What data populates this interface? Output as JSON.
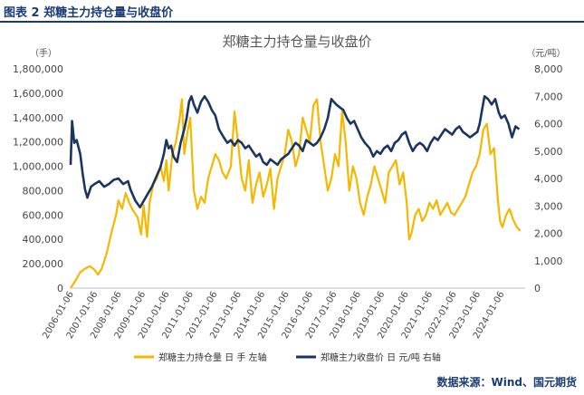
{
  "figure": {
    "caption": "图表 2  郑糖主力持仓量与收盘价",
    "source": "数据来源：Wind、国元期货"
  },
  "chart_data": {
    "type": "line",
    "title": "郑糖主力持仓量与收盘价",
    "left_axis": {
      "unit_label": "（手）",
      "ylim": [
        0,
        1800000
      ],
      "ticks": [
        "0",
        "200,000",
        "400,000",
        "600,000",
        "800,000",
        "1,000,000",
        "1,200,000",
        "1,400,000",
        "1,600,000",
        "1,800,000"
      ]
    },
    "right_axis": {
      "unit_label": "（元/吨）",
      "ylim": [
        0,
        8000
      ],
      "ticks": [
        "0",
        "1,000",
        "2,000",
        "3,000",
        "4,000",
        "5,000",
        "6,000",
        "7,000",
        "8,000"
      ]
    },
    "x_ticks": [
      "2006-01-06",
      "2007-01-06",
      "2008-01-06",
      "2009-01-06",
      "2010-01-06",
      "2011-01-06",
      "2012-01-06",
      "2013-01-06",
      "2014-01-06",
      "2015-01-06",
      "2016-01-06",
      "2017-01-06",
      "2018-01-06",
      "2019-01-06",
      "2020-01-06",
      "2021-01-06",
      "2022-01-06",
      "2023-01-06",
      "2024-01-06"
    ],
    "x_range": [
      2006.0,
      2025.0
    ],
    "colors": {
      "open_interest": "#f5b800",
      "close_price": "#1b3560"
    },
    "series": [
      {
        "name": "郑糖主力持仓量 日 手 左轴",
        "axis": "left",
        "color": "#f5b800",
        "points": [
          [
            2006.0,
            0
          ],
          [
            2006.2,
            60000
          ],
          [
            2006.4,
            130000
          ],
          [
            2006.6,
            160000
          ],
          [
            2006.8,
            180000
          ],
          [
            2007.0,
            150000
          ],
          [
            2007.15,
            110000
          ],
          [
            2007.3,
            160000
          ],
          [
            2007.5,
            280000
          ],
          [
            2007.7,
            450000
          ],
          [
            2007.9,
            600000
          ],
          [
            2008.0,
            720000
          ],
          [
            2008.15,
            650000
          ],
          [
            2008.3,
            780000
          ],
          [
            2008.45,
            700000
          ],
          [
            2008.6,
            640000
          ],
          [
            2008.8,
            580000
          ],
          [
            2008.95,
            440000
          ],
          [
            2009.05,
            680000
          ],
          [
            2009.2,
            420000
          ],
          [
            2009.3,
            700000
          ],
          [
            2009.45,
            850000
          ],
          [
            2009.6,
            900000
          ],
          [
            2009.75,
            1000000
          ],
          [
            2009.9,
            880000
          ],
          [
            2010.0,
            1050000
          ],
          [
            2010.1,
            800000
          ],
          [
            2010.25,
            1100000
          ],
          [
            2010.4,
            1200000
          ],
          [
            2010.55,
            1380000
          ],
          [
            2010.65,
            1550000
          ],
          [
            2010.75,
            1100000
          ],
          [
            2010.9,
            1300000
          ],
          [
            2011.0,
            1400000
          ],
          [
            2011.15,
            800000
          ],
          [
            2011.3,
            650000
          ],
          [
            2011.45,
            750000
          ],
          [
            2011.6,
            700000
          ],
          [
            2011.75,
            900000
          ],
          [
            2011.9,
            1000000
          ],
          [
            2012.05,
            1100000
          ],
          [
            2012.2,
            1050000
          ],
          [
            2012.35,
            950000
          ],
          [
            2012.5,
            900000
          ],
          [
            2012.7,
            1000000
          ],
          [
            2012.85,
            1450000
          ],
          [
            2013.0,
            1200000
          ],
          [
            2013.15,
            900000
          ],
          [
            2013.3,
            800000
          ],
          [
            2013.45,
            1050000
          ],
          [
            2013.6,
            700000
          ],
          [
            2013.75,
            850000
          ],
          [
            2013.9,
            950000
          ],
          [
            2014.05,
            750000
          ],
          [
            2014.2,
            850000
          ],
          [
            2014.35,
            980000
          ],
          [
            2014.5,
            650000
          ],
          [
            2014.65,
            900000
          ],
          [
            2014.8,
            1000000
          ],
          [
            2014.95,
            1100000
          ],
          [
            2015.1,
            1300000
          ],
          [
            2015.25,
            1200000
          ],
          [
            2015.4,
            1000000
          ],
          [
            2015.55,
            1100000
          ],
          [
            2015.7,
            1400000
          ],
          [
            2015.85,
            1300000
          ],
          [
            2016.0,
            1200000
          ],
          [
            2016.15,
            1500000
          ],
          [
            2016.3,
            1550000
          ],
          [
            2016.45,
            1200000
          ],
          [
            2016.6,
            1000000
          ],
          [
            2016.75,
            800000
          ],
          [
            2016.9,
            900000
          ],
          [
            2017.05,
            1100000
          ],
          [
            2017.2,
            1000000
          ],
          [
            2017.35,
            1450000
          ],
          [
            2017.5,
            1200000
          ],
          [
            2017.65,
            800000
          ],
          [
            2017.8,
            1000000
          ],
          [
            2017.95,
            900000
          ],
          [
            2018.1,
            700000
          ],
          [
            2018.25,
            600000
          ],
          [
            2018.4,
            750000
          ],
          [
            2018.55,
            850000
          ],
          [
            2018.7,
            1000000
          ],
          [
            2018.85,
            900000
          ],
          [
            2019.0,
            800000
          ],
          [
            2019.15,
            700000
          ],
          [
            2019.3,
            950000
          ],
          [
            2019.45,
            1000000
          ],
          [
            2019.6,
            1050000
          ],
          [
            2019.75,
            850000
          ],
          [
            2019.9,
            950000
          ],
          [
            2020.05,
            700000
          ],
          [
            2020.15,
            400000
          ],
          [
            2020.25,
            450000
          ],
          [
            2020.4,
            600000
          ],
          [
            2020.55,
            650000
          ],
          [
            2020.7,
            550000
          ],
          [
            2020.85,
            600000
          ],
          [
            2021.0,
            700000
          ],
          [
            2021.15,
            650000
          ],
          [
            2021.3,
            720000
          ],
          [
            2021.45,
            600000
          ],
          [
            2021.6,
            650000
          ],
          [
            2021.75,
            700000
          ],
          [
            2021.9,
            620000
          ],
          [
            2022.05,
            600000
          ],
          [
            2022.2,
            650000
          ],
          [
            2022.35,
            700000
          ],
          [
            2022.5,
            750000
          ],
          [
            2022.65,
            850000
          ],
          [
            2022.8,
            950000
          ],
          [
            2022.95,
            1000000
          ],
          [
            2023.1,
            1100000
          ],
          [
            2023.25,
            1300000
          ],
          [
            2023.4,
            1350000
          ],
          [
            2023.55,
            1100000
          ],
          [
            2023.7,
            1150000
          ],
          [
            2023.85,
            750000
          ],
          [
            2023.95,
            550000
          ],
          [
            2024.05,
            500000
          ],
          [
            2024.2,
            600000
          ],
          [
            2024.35,
            650000
          ],
          [
            2024.5,
            560000
          ],
          [
            2024.65,
            500000
          ],
          [
            2024.8,
            470000
          ]
        ]
      },
      {
        "name": "郑糖主力收盘价 日 元/吨 右轴",
        "axis": "right",
        "color": "#1b3560",
        "points": [
          [
            2006.0,
            4500
          ],
          [
            2006.06,
            6100
          ],
          [
            2006.15,
            5300
          ],
          [
            2006.25,
            5400
          ],
          [
            2006.4,
            4900
          ],
          [
            2006.5,
            4200
          ],
          [
            2006.6,
            3600
          ],
          [
            2006.7,
            3300
          ],
          [
            2006.85,
            3700
          ],
          [
            2007.0,
            3800
          ],
          [
            2007.2,
            3900
          ],
          [
            2007.4,
            3700
          ],
          [
            2007.6,
            3800
          ],
          [
            2007.8,
            3950
          ],
          [
            2008.0,
            4000
          ],
          [
            2008.2,
            3800
          ],
          [
            2008.4,
            3900
          ],
          [
            2008.5,
            3600
          ],
          [
            2008.7,
            3200
          ],
          [
            2008.9,
            2950
          ],
          [
            2009.0,
            3100
          ],
          [
            2009.2,
            3400
          ],
          [
            2009.4,
            3700
          ],
          [
            2009.6,
            4100
          ],
          [
            2009.75,
            4400
          ],
          [
            2009.9,
            4900
          ],
          [
            2010.0,
            5400
          ],
          [
            2010.1,
            5100
          ],
          [
            2010.2,
            5200
          ],
          [
            2010.3,
            4800
          ],
          [
            2010.45,
            4600
          ],
          [
            2010.6,
            5300
          ],
          [
            2010.75,
            5800
          ],
          [
            2010.85,
            6200
          ],
          [
            2010.95,
            6800
          ],
          [
            2011.05,
            7000
          ],
          [
            2011.15,
            6700
          ],
          [
            2011.3,
            6400
          ],
          [
            2011.45,
            6800
          ],
          [
            2011.6,
            7000
          ],
          [
            2011.75,
            6800
          ],
          [
            2011.9,
            6500
          ],
          [
            2012.05,
            6300
          ],
          [
            2012.2,
            5800
          ],
          [
            2012.4,
            5500
          ],
          [
            2012.55,
            5300
          ],
          [
            2012.7,
            5400
          ],
          [
            2012.85,
            5200
          ],
          [
            2013.0,
            5400
          ],
          [
            2013.15,
            5300
          ],
          [
            2013.3,
            5100
          ],
          [
            2013.45,
            5200
          ],
          [
            2013.6,
            5000
          ],
          [
            2013.75,
            4800
          ],
          [
            2013.9,
            4900
          ],
          [
            2014.05,
            4600
          ],
          [
            2014.2,
            4500
          ],
          [
            2014.35,
            4700
          ],
          [
            2014.5,
            4600
          ],
          [
            2014.65,
            4500
          ],
          [
            2014.8,
            4700
          ],
          [
            2014.95,
            4800
          ],
          [
            2015.1,
            4900
          ],
          [
            2015.25,
            5100
          ],
          [
            2015.4,
            5300
          ],
          [
            2015.55,
            5200
          ],
          [
            2015.7,
            5000
          ],
          [
            2015.85,
            5400
          ],
          [
            2016.0,
            5300
          ],
          [
            2016.15,
            5200
          ],
          [
            2016.3,
            5300
          ],
          [
            2016.45,
            5500
          ],
          [
            2016.6,
            5800
          ],
          [
            2016.75,
            6200
          ],
          [
            2016.9,
            6900
          ],
          [
            2017.0,
            6800
          ],
          [
            2017.1,
            6700
          ],
          [
            2017.25,
            6600
          ],
          [
            2017.4,
            6500
          ],
          [
            2017.55,
            6200
          ],
          [
            2017.7,
            6000
          ],
          [
            2017.85,
            6100
          ],
          [
            2018.0,
            5800
          ],
          [
            2018.15,
            5500
          ],
          [
            2018.3,
            5300
          ],
          [
            2018.5,
            5100
          ],
          [
            2018.65,
            4800
          ],
          [
            2018.8,
            5000
          ],
          [
            2018.95,
            4900
          ],
          [
            2019.1,
            5100
          ],
          [
            2019.25,
            5200
          ],
          [
            2019.4,
            5000
          ],
          [
            2019.55,
            5300
          ],
          [
            2019.7,
            5400
          ],
          [
            2019.85,
            5600
          ],
          [
            2020.0,
            5700
          ],
          [
            2020.15,
            5300
          ],
          [
            2020.3,
            5000
          ],
          [
            2020.45,
            5200
          ],
          [
            2020.6,
            5300
          ],
          [
            2020.75,
            5200
          ],
          [
            2020.9,
            5000
          ],
          [
            2021.05,
            5300
          ],
          [
            2021.2,
            5500
          ],
          [
            2021.35,
            5400
          ],
          [
            2021.5,
            5600
          ],
          [
            2021.65,
            5800
          ],
          [
            2021.8,
            5700
          ],
          [
            2021.95,
            5600
          ],
          [
            2022.1,
            5800
          ],
          [
            2022.25,
            5900
          ],
          [
            2022.4,
            5700
          ],
          [
            2022.55,
            5600
          ],
          [
            2022.7,
            5500
          ],
          [
            2022.85,
            5600
          ],
          [
            2023.0,
            5700
          ],
          [
            2023.1,
            6000
          ],
          [
            2023.2,
            6500
          ],
          [
            2023.3,
            7000
          ],
          [
            2023.45,
            6900
          ],
          [
            2023.6,
            6700
          ],
          [
            2023.75,
            6900
          ],
          [
            2023.9,
            6400
          ],
          [
            2024.0,
            6200
          ],
          [
            2024.15,
            6300
          ],
          [
            2024.3,
            6000
          ],
          [
            2024.45,
            5500
          ],
          [
            2024.6,
            5900
          ],
          [
            2024.75,
            5800
          ]
        ]
      }
    ],
    "legend": {
      "placement": "bottom"
    }
  }
}
